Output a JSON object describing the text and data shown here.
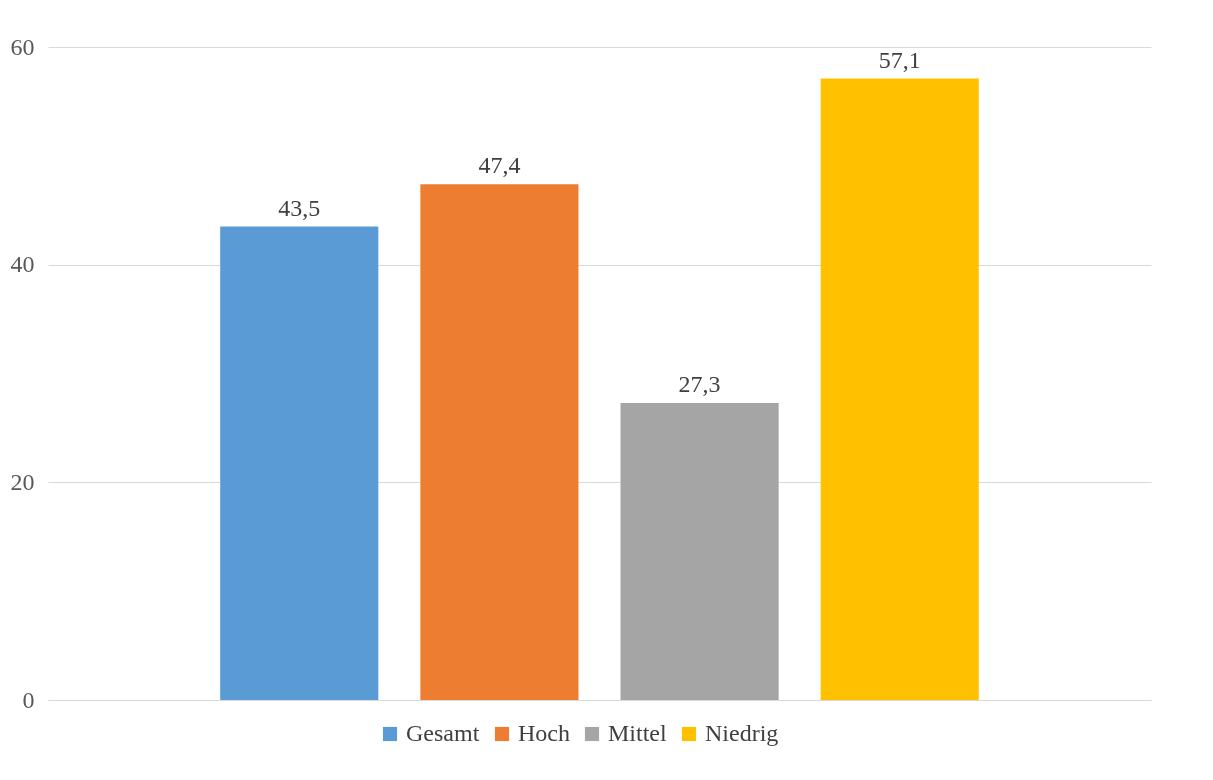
{
  "chart_data": {
    "type": "bar",
    "categories": [
      null
    ],
    "series": [
      {
        "name": "Gesamt",
        "color": "#5b9bd5",
        "values": [
          43.5
        ],
        "value_labels": [
          "43,5"
        ]
      },
      {
        "name": "Hoch",
        "color": "#ed7d31",
        "values": [
          47.4
        ],
        "value_labels": [
          "47,4"
        ]
      },
      {
        "name": "Mittel",
        "color": "#a5a5a5",
        "values": [
          27.3
        ],
        "value_labels": [
          "27,3"
        ]
      },
      {
        "name": "Niedrig",
        "color": "#ffc000",
        "values": [
          57.1
        ],
        "value_labels": [
          "57,1"
        ]
      }
    ],
    "ylim": [
      0,
      60
    ],
    "yticks": [
      0,
      20,
      40,
      60
    ],
    "grid": "y",
    "legend": "bottom"
  }
}
